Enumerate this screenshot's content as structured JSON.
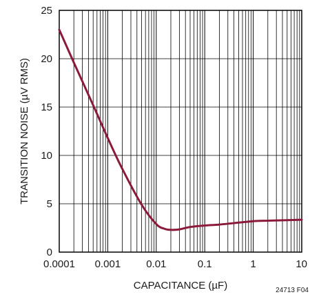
{
  "chart_data": {
    "type": "line",
    "title": "",
    "xlabel": "CAPACITANCE (µF)",
    "ylabel": "TRANSITION NOISE (µV RMS)",
    "x_scale": "log",
    "xlim": [
      0.0001,
      10
    ],
    "ylim": [
      0,
      25
    ],
    "x_tick_labels": [
      "0.0001",
      "0.001",
      "0.01",
      "0.1",
      "1",
      "10"
    ],
    "x_tick_values": [
      0.0001,
      0.001,
      0.01,
      0.1,
      1,
      10
    ],
    "y_tick_labels": [
      "0",
      "5",
      "10",
      "15",
      "20",
      "25"
    ],
    "y_tick_values": [
      0,
      5,
      10,
      15,
      20,
      25
    ],
    "grid": true,
    "legend": "none",
    "series_color": "#8b1a3a",
    "series": [
      {
        "x": [
          0.0001,
          0.0002,
          0.0005,
          0.001,
          0.002,
          0.005,
          0.01,
          0.015,
          0.02,
          0.03,
          0.05,
          0.1,
          0.2,
          0.5,
          1,
          2,
          5,
          10
        ],
        "y": [
          23.0,
          19.6,
          15.2,
          11.8,
          8.6,
          4.9,
          2.9,
          2.4,
          2.3,
          2.35,
          2.6,
          2.75,
          2.85,
          3.05,
          3.2,
          3.25,
          3.3,
          3.35
        ]
      }
    ]
  },
  "figure_id": "24713 F04"
}
